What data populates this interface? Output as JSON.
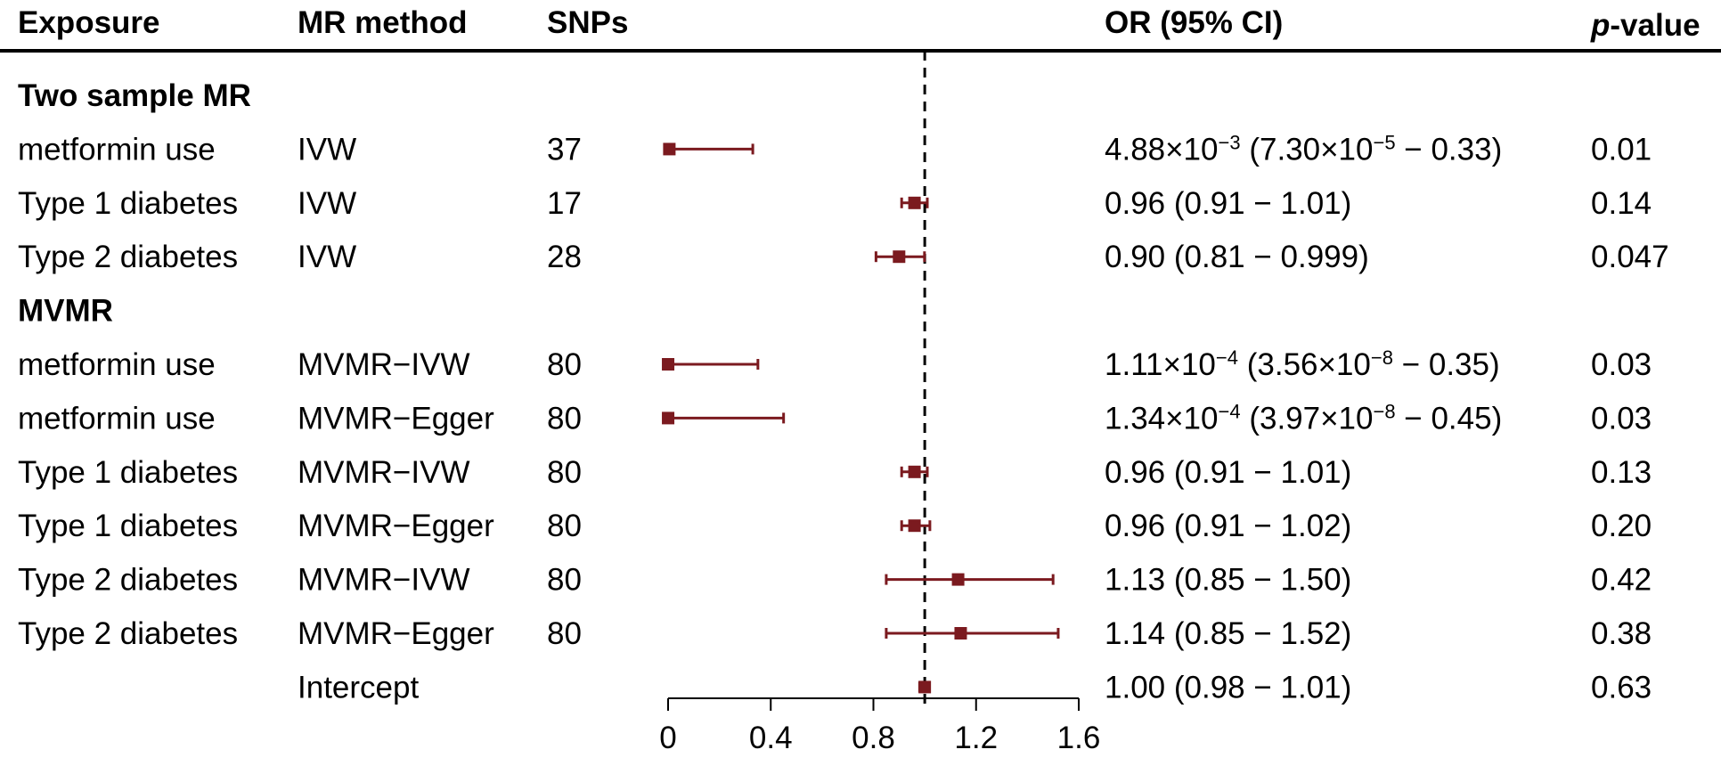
{
  "colors": {
    "marker": "#7b1a1f",
    "text": "#000000"
  },
  "headers": {
    "exposure": "Exposure",
    "method": "MR method",
    "snps": "SNPs",
    "or": "OR (95% CI)",
    "p_italic": "p",
    "p_rest": "-value"
  },
  "chart_data": {
    "type": "forest",
    "reference_line": 1,
    "xlim": [
      0,
      1.6
    ],
    "xticks": [
      0,
      0.4,
      0.8,
      1.2,
      1.6
    ],
    "xtick_labels": [
      "0",
      "0.4",
      "0.8",
      "1.2",
      "1.6"
    ],
    "sections": [
      {
        "title": "Two sample MR",
        "rows": [
          {
            "exposure": "metformin use",
            "method": "IVW",
            "snps": "37",
            "or": 0.00488,
            "lo": 7.3e-05,
            "hi": 0.33,
            "or_parts": [
              "4.88×10",
              "−3",
              " (7.30×10",
              "−5",
              " − 0.33)"
            ],
            "p": "0.01"
          },
          {
            "exposure": "Type 1 diabetes",
            "method": "IVW",
            "snps": "17",
            "or": 0.96,
            "lo": 0.91,
            "hi": 1.01,
            "or_parts": [
              "0.96 (0.91 − 1.01)"
            ],
            "p": "0.14"
          },
          {
            "exposure": "Type 2 diabetes",
            "method": "IVW",
            "snps": "28",
            "or": 0.9,
            "lo": 0.81,
            "hi": 0.999,
            "or_parts": [
              "0.90 (0.81 − 0.999)"
            ],
            "p": "0.047"
          }
        ]
      },
      {
        "title": "MVMR",
        "rows": [
          {
            "exposure": "metformin use",
            "method": "MVMR−IVW",
            "snps": "80",
            "or": 0.000111,
            "lo": 3.56e-08,
            "hi": 0.35,
            "or_parts": [
              "1.11×10",
              "−4",
              " (3.56×10",
              "−8",
              " − 0.35)"
            ],
            "p": "0.03"
          },
          {
            "exposure": "metformin use",
            "method": "MVMR−Egger",
            "snps": "80",
            "or": 0.000134,
            "lo": 3.97e-08,
            "hi": 0.45,
            "or_parts": [
              "1.34×10",
              "−4",
              " (3.97×10",
              "−8",
              " − 0.45)"
            ],
            "p": "0.03"
          },
          {
            "exposure": "Type 1 diabetes",
            "method": "MVMR−IVW",
            "snps": "80",
            "or": 0.96,
            "lo": 0.91,
            "hi": 1.01,
            "or_parts": [
              "0.96 (0.91 − 1.01)"
            ],
            "p": "0.13"
          },
          {
            "exposure": "Type 1 diabetes",
            "method": "MVMR−Egger",
            "snps": "80",
            "or": 0.96,
            "lo": 0.91,
            "hi": 1.02,
            "or_parts": [
              "0.96 (0.91 − 1.02)"
            ],
            "p": "0.20"
          },
          {
            "exposure": "Type 2 diabetes",
            "method": "MVMR−IVW",
            "snps": "80",
            "or": 1.13,
            "lo": 0.85,
            "hi": 1.5,
            "or_parts": [
              "1.13 (0.85 − 1.50)"
            ],
            "p": "0.42"
          },
          {
            "exposure": "Type 2 diabetes",
            "method": "MVMR−Egger",
            "snps": "80",
            "or": 1.14,
            "lo": 0.85,
            "hi": 1.52,
            "or_parts": [
              "1.14 (0.85 − 1.52)"
            ],
            "p": "0.38"
          },
          {
            "exposure": "",
            "method": "Intercept",
            "snps": "",
            "or": 1.0,
            "lo": 0.98,
            "hi": 1.01,
            "or_parts": [
              "1.00 (0.98 − 1.01)"
            ],
            "p": "0.63"
          }
        ]
      }
    ]
  }
}
